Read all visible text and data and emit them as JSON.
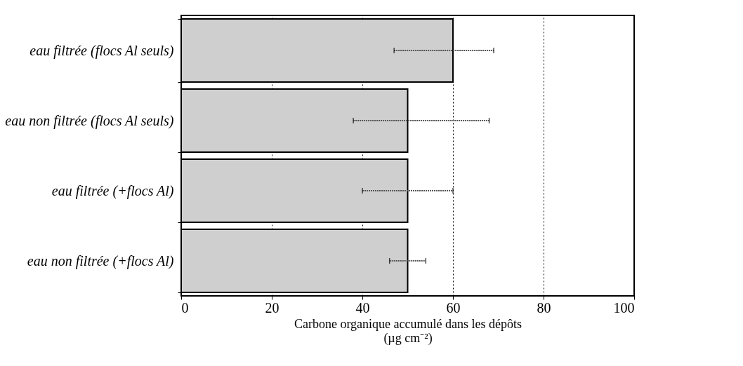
{
  "chart_data": {
    "type": "bar",
    "orientation": "horizontal",
    "categories": [
      "eau filtrée (flocs Al seuls)",
      "eau non filtrée (flocs Al seuls)",
      "eau filtrée (+flocs Al)",
      "eau non filtrée (+flocs Al)"
    ],
    "values": [
      60,
      50,
      50,
      50
    ],
    "errors": [
      [
        47,
        69
      ],
      [
        38,
        68
      ],
      [
        40,
        60
      ],
      [
        46,
        54
      ]
    ],
    "color": "#cfcfcf",
    "xlim": [
      0,
      100
    ],
    "xticks": [
      0,
      20,
      40,
      60,
      80,
      100
    ],
    "xlabel": "Carbone organique accumulé dans les dépôts\n(µg cm⁻²)",
    "grid": "x"
  }
}
